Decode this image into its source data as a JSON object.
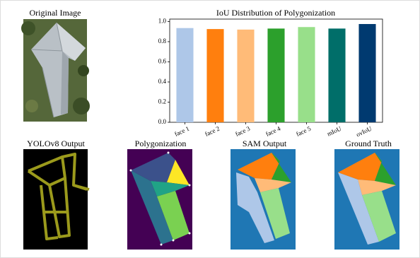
{
  "panels": [
    {
      "title": "Original Image"
    },
    {
      "title": "YOLOv8 Output"
    },
    {
      "title": "Polygonization"
    },
    {
      "title": "SAM Output"
    },
    {
      "title": "Ground Truth"
    }
  ],
  "chart_data": {
    "type": "bar",
    "title": "IoU Distribution of Polygonization",
    "categories": [
      "face 1",
      "face 2",
      "face 3",
      "face 4",
      "face 5",
      "mIoU",
      "ovIoU"
    ],
    "values": [
      0.935,
      0.925,
      0.92,
      0.93,
      0.945,
      0.93,
      0.975
    ],
    "colors": [
      "#aec7e8",
      "#ff7f0e",
      "#ffbb78",
      "#2ca02c",
      "#98df8a",
      "#006e69",
      "#003a70"
    ],
    "ylim": [
      0,
      1.024
    ],
    "yticks": [
      {
        "value": 0,
        "label": "0.0"
      },
      {
        "value": 0.2,
        "label": "0.2"
      },
      {
        "value": 0.4,
        "label": "0.4"
      },
      {
        "value": 0.6,
        "label": "0.6"
      },
      {
        "value": 0.8,
        "label": "0.8"
      },
      {
        "value": 1,
        "label": "1.0"
      }
    ]
  }
}
